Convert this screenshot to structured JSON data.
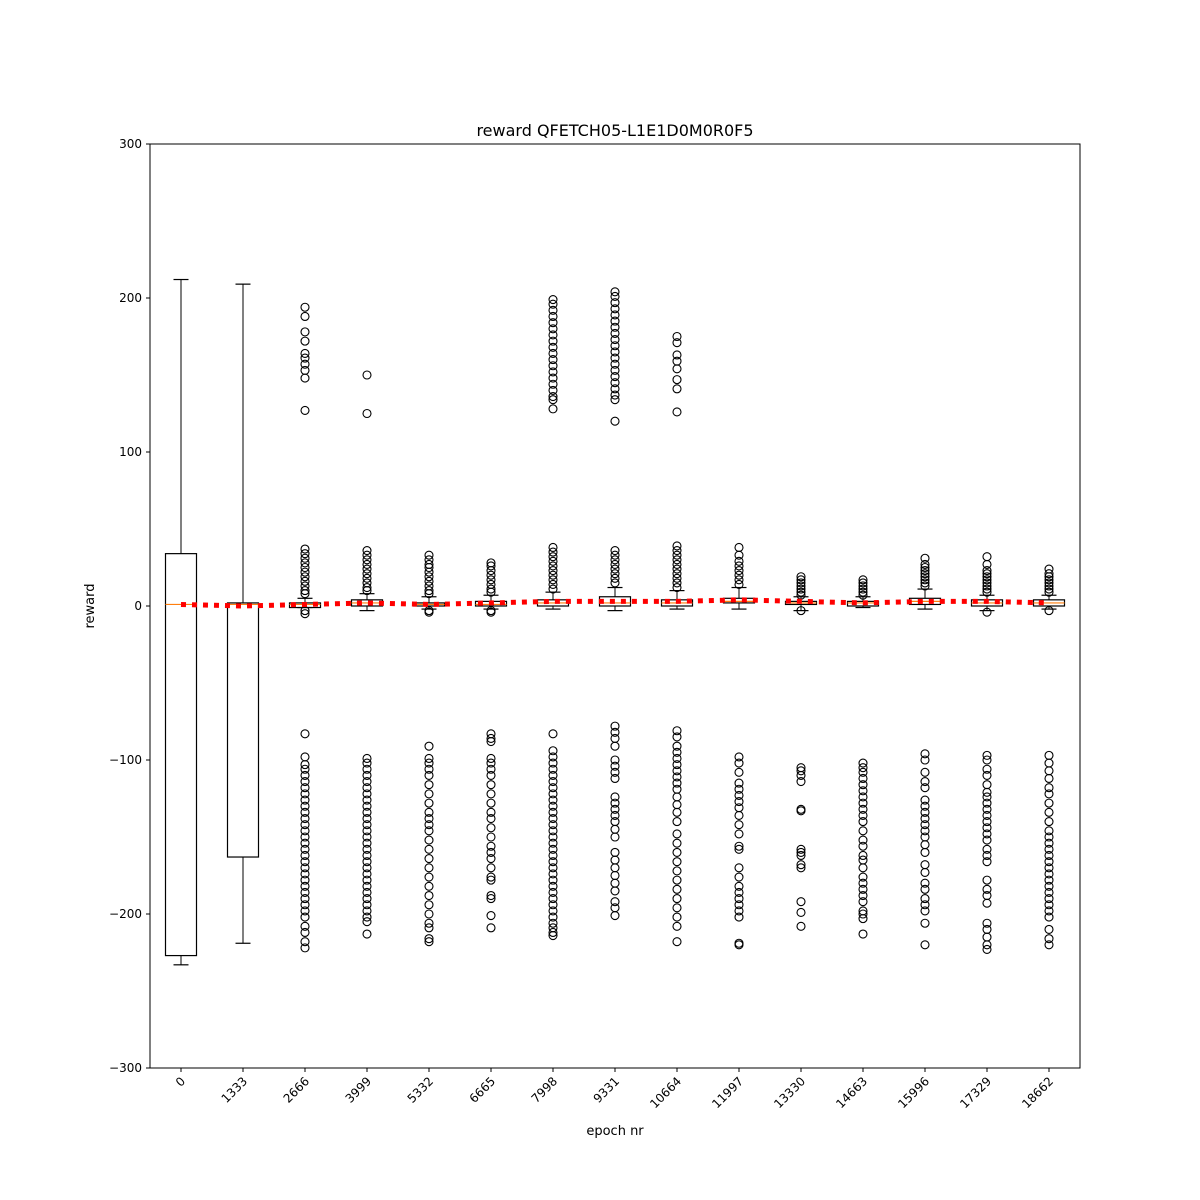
{
  "chart_data": {
    "type": "boxplot",
    "title": "reward QFETCH05-L1E1D0M0R0F5",
    "xlabel": "epoch nr",
    "ylabel": "reward",
    "ylim": [
      -300,
      300
    ],
    "yticks": [
      -300,
      -200,
      -100,
      0,
      100,
      200,
      300
    ],
    "yticklabels": [
      "−300",
      "−200",
      "−100",
      "0",
      "100",
      "200",
      "300"
    ],
    "categories": [
      "0",
      "1333",
      "2666",
      "3999",
      "5332",
      "6665",
      "7998",
      "9331",
      "10664",
      "11997",
      "13330",
      "14663",
      "15996",
      "17329",
      "18662"
    ],
    "boxes": [
      {
        "whislo": -233,
        "q1": -227,
        "med": 1,
        "q3": 34,
        "whishi": 212,
        "fliers": []
      },
      {
        "whislo": -219,
        "q1": -163,
        "med": 1,
        "q3": 2,
        "whishi": 209,
        "fliers": []
      },
      {
        "whislo": -1,
        "q1": -1,
        "med": 1,
        "q3": 2,
        "whishi": 5,
        "fliers": [
          194,
          188,
          178,
          172,
          164,
          161,
          157,
          153,
          148,
          127,
          37,
          34,
          31,
          28,
          25,
          22,
          19,
          16,
          13,
          10,
          8,
          -3,
          -5,
          -83,
          -98,
          -103,
          -106,
          -110,
          -114,
          -118,
          -122,
          -126,
          -130,
          -134,
          -138,
          -142,
          -146,
          -150,
          -154,
          -158,
          -162,
          -166,
          -170,
          -174,
          -178,
          -182,
          -186,
          -190,
          -194,
          -198,
          -202,
          -208,
          -212,
          -218,
          -222
        ]
      },
      {
        "whislo": -3,
        "q1": 0,
        "med": 2,
        "q3": 4,
        "whishi": 8,
        "fliers": [
          150,
          125,
          36,
          33,
          30,
          27,
          24,
          21,
          18,
          15,
          12,
          10,
          -99,
          -102,
          -106,
          -110,
          -114,
          -118,
          -122,
          -126,
          -130,
          -134,
          -138,
          -142,
          -146,
          -150,
          -154,
          -158,
          -162,
          -166,
          -170,
          -174,
          -178,
          -182,
          -186,
          -190,
          -194,
          -198,
          -202,
          -205,
          -213
        ]
      },
      {
        "whislo": -2,
        "q1": 0,
        "med": 1,
        "q3": 2,
        "whishi": 6,
        "fliers": [
          33,
          30,
          27,
          25,
          22,
          19,
          16,
          13,
          10,
          8,
          -3,
          -4,
          -91,
          -99,
          -102,
          -106,
          -110,
          -116,
          -122,
          -128,
          -134,
          -138,
          -142,
          -146,
          -152,
          -158,
          -164,
          -170,
          -176,
          -182,
          -188,
          -194,
          -200,
          -206,
          -209,
          -216,
          -218
        ]
      },
      {
        "whislo": -2,
        "q1": 0,
        "med": 1,
        "q3": 3,
        "whishi": 7,
        "fliers": [
          28,
          26,
          23,
          20,
          17,
          14,
          11,
          9,
          -3,
          -4,
          -83,
          -86,
          -88,
          -99,
          -102,
          -106,
          -110,
          -116,
          -122,
          -128,
          -134,
          -138,
          -144,
          -150,
          -156,
          -160,
          -164,
          -170,
          -176,
          -178,
          -188,
          -190,
          -201,
          -209
        ]
      },
      {
        "whislo": -2,
        "q1": 0,
        "med": 2,
        "q3": 4,
        "whishi": 9,
        "fliers": [
          199,
          196,
          192,
          188,
          184,
          180,
          176,
          172,
          168,
          164,
          160,
          156,
          152,
          148,
          144,
          140,
          136,
          134,
          128,
          38,
          35,
          32,
          29,
          26,
          23,
          20,
          17,
          14,
          11,
          -83,
          -94,
          -98,
          -102,
          -106,
          -110,
          -114,
          -118,
          -122,
          -126,
          -130,
          -134,
          -138,
          -142,
          -146,
          -150,
          -154,
          -158,
          -162,
          -166,
          -170,
          -174,
          -178,
          -182,
          -186,
          -190,
          -194,
          -198,
          -202,
          -206,
          -209,
          -212,
          -214
        ]
      },
      {
        "whislo": -3,
        "q1": 0,
        "med": 2,
        "q3": 6,
        "whishi": 12,
        "fliers": [
          204,
          201,
          197,
          193,
          189,
          185,
          181,
          177,
          173,
          169,
          165,
          161,
          157,
          153,
          149,
          145,
          141,
          137,
          134,
          120,
          36,
          33,
          30,
          27,
          24,
          21,
          18,
          15,
          -78,
          -82,
          -86,
          -91,
          -100,
          -104,
          -108,
          -112,
          -124,
          -128,
          -132,
          -136,
          -140,
          -145,
          -150,
          -160,
          -165,
          -170,
          -175,
          -180,
          -185,
          -192,
          -196,
          -201
        ]
      },
      {
        "whislo": -2,
        "q1": 0,
        "med": 2,
        "q3": 4,
        "whishi": 10,
        "fliers": [
          175,
          171,
          163,
          159,
          154,
          147,
          141,
          126,
          39,
          36,
          33,
          30,
          27,
          24,
          21,
          18,
          15,
          12,
          -81,
          -85,
          -91,
          -95,
          -99,
          -103,
          -107,
          -111,
          -115,
          -119,
          -124,
          -129,
          -134,
          -140,
          -148,
          -154,
          -160,
          -166,
          -172,
          -178,
          -184,
          -190,
          -196,
          -202,
          -208,
          -218
        ]
      },
      {
        "whislo": -2,
        "q1": 2,
        "med": 3,
        "q3": 5,
        "whishi": 12,
        "fliers": [
          38,
          33,
          29,
          26,
          23,
          20,
          17,
          14,
          -98,
          -102,
          -108,
          -115,
          -119,
          -123,
          -127,
          -131,
          -136,
          -142,
          -148,
          -156,
          -158,
          -170,
          -176,
          -182,
          -186,
          -190,
          -194,
          -198,
          -202,
          -219,
          -220
        ]
      },
      {
        "whislo": -3,
        "q1": 1,
        "med": 2,
        "q3": 3,
        "whishi": 6,
        "fliers": [
          19,
          17,
          15,
          13,
          11,
          9,
          7,
          -3,
          -105,
          -107,
          -110,
          -114,
          -132,
          -133,
          -158,
          -160,
          -162,
          -168,
          -170,
          -192,
          -199,
          -208
        ]
      },
      {
        "whislo": -1,
        "q1": 0,
        "med": 2,
        "q3": 3,
        "whishi": 6,
        "fliers": [
          17,
          15,
          13,
          11,
          9,
          7,
          -102,
          -105,
          -108,
          -112,
          -116,
          -120,
          -124,
          -128,
          -132,
          -136,
          -140,
          -146,
          -152,
          -156,
          -162,
          -165,
          -170,
          -176,
          -180,
          -184,
          -188,
          -192,
          -198,
          -200,
          -203,
          -213
        ]
      },
      {
        "whislo": -2,
        "q1": 1,
        "med": 3,
        "q3": 5,
        "whishi": 11,
        "fliers": [
          31,
          27,
          25,
          23,
          21,
          19,
          17,
          15,
          13,
          -96,
          -100,
          -108,
          -114,
          -118,
          -126,
          -130,
          -134,
          -138,
          -142,
          -146,
          -150,
          -155,
          -160,
          -168,
          -173,
          -180,
          -184,
          -190,
          -194,
          -198,
          -206,
          -220
        ]
      },
      {
        "whislo": -3,
        "q1": 0,
        "med": 2,
        "q3": 4,
        "whishi": 7,
        "fliers": [
          32,
          27,
          23,
          21,
          19,
          17,
          15,
          13,
          11,
          9,
          -4,
          -97,
          -100,
          -106,
          -110,
          -116,
          -121,
          -124,
          -128,
          -132,
          -136,
          -140,
          -144,
          -148,
          -152,
          -158,
          -162,
          -166,
          -178,
          -184,
          -188,
          -193,
          -206,
          -210,
          -215,
          -220,
          -223
        ]
      },
      {
        "whislo": -2,
        "q1": 0,
        "med": 2,
        "q3": 4,
        "whishi": 7,
        "fliers": [
          24,
          21,
          19,
          17,
          15,
          13,
          11,
          9,
          -3,
          -97,
          -102,
          -107,
          -112,
          -118,
          -122,
          -128,
          -134,
          -140,
          -146,
          -150,
          -154,
          -158,
          -162,
          -166,
          -170,
          -174,
          -178,
          -182,
          -186,
          -190,
          -194,
          -198,
          -202,
          -210,
          -216,
          -220
        ]
      }
    ],
    "means": [
      1,
      0,
      1,
      2,
      1,
      2,
      3,
      3,
      3,
      4,
      3,
      2,
      3,
      3,
      2
    ],
    "mean_line_color": "#ff0000",
    "median_color": "#ff7f0e",
    "grid": false,
    "legend": false
  }
}
